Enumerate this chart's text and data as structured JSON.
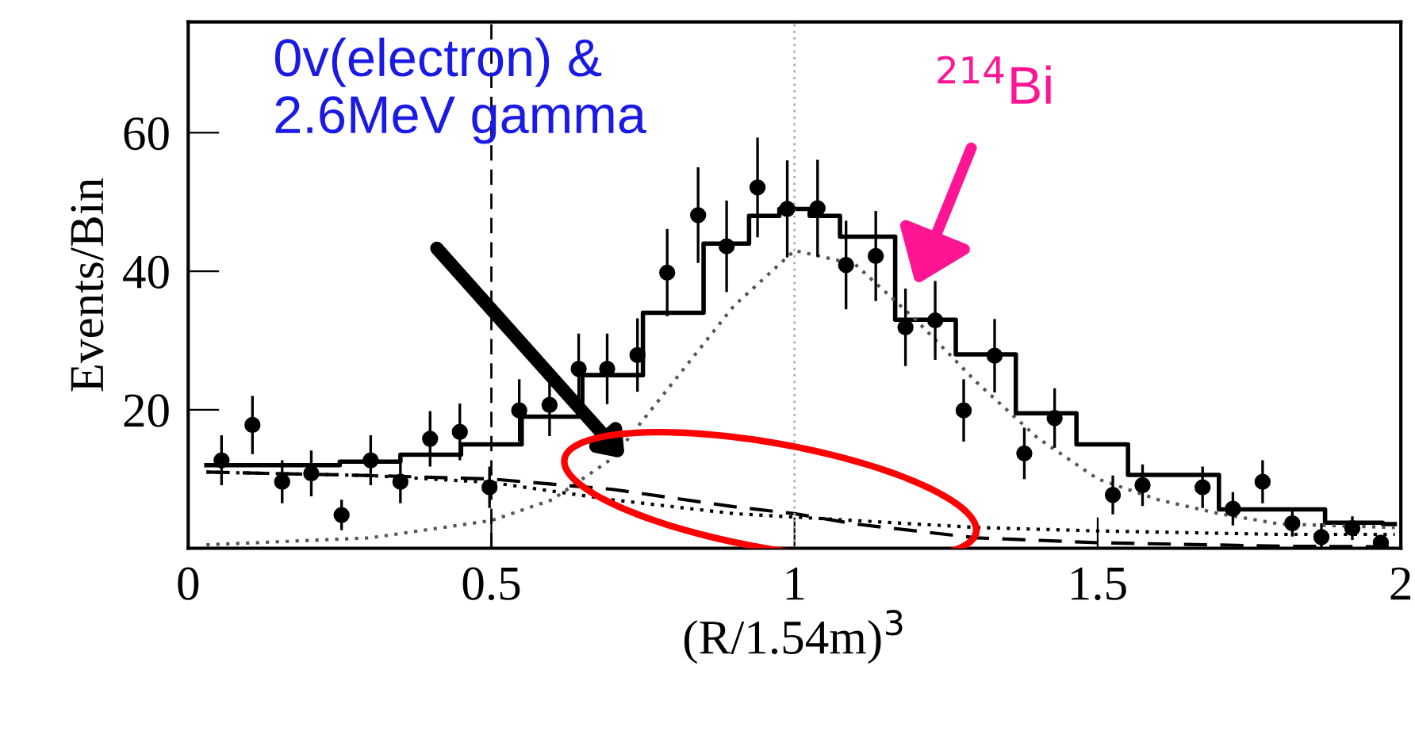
{
  "chart_data": {
    "type": "scatter",
    "xlabel": "(R/1.54m)$^{3}$",
    "ylabel": "Events/Bin",
    "xlim": [
      0,
      2
    ],
    "ylim": [
      0,
      76
    ],
    "xticks": [
      0,
      0.5,
      1,
      1.5,
      2
    ],
    "yticks": [
      20,
      40,
      60
    ],
    "grid": false,
    "legend": false,
    "series": [
      {
        "color": "#000000",
        "marker": "circle",
        "x": [
          0.055,
          0.106,
          0.155,
          0.203,
          0.253,
          0.301,
          0.35,
          0.399,
          0.448,
          0.497,
          0.546,
          0.596,
          0.644,
          0.691,
          0.741,
          0.79,
          0.841,
          0.888,
          0.939,
          0.988,
          1.038,
          1.085,
          1.134,
          1.183,
          1.232,
          1.279,
          1.33,
          1.379,
          1.429,
          1.525,
          1.574,
          1.673,
          1.723,
          1.772,
          1.821,
          1.869,
          1.92,
          1.967
        ],
        "values": [
          12.7,
          17.8,
          9.6,
          10.8,
          4.8,
          12.7,
          9.6,
          15.8,
          16.8,
          8.8,
          19.9,
          20.7,
          25.9,
          25.9,
          27.9,
          39.8,
          48.1,
          43.6,
          52.1,
          49,
          49.1,
          40.9,
          42.2,
          31.9,
          32.9,
          19.9,
          27.8,
          13.7,
          18.8,
          7.7,
          9.1,
          8.8,
          5.7,
          9.6,
          3.6,
          1.6,
          2.9,
          0.8
        ],
        "errors": [
          3.6,
          4.2,
          3.1,
          3.3,
          2.2,
          3.6,
          3.1,
          4,
          4.1,
          3,
          4.5,
          4.5,
          5.1,
          5.1,
          5.3,
          6.3,
          6.9,
          6.6,
          7.2,
          7,
          7,
          6.4,
          6.5,
          5.6,
          5.7,
          4.5,
          5.3,
          3.7,
          4.3,
          2.8,
          3,
          3,
          2.4,
          3.1,
          1.9,
          2,
          1.7,
          0.9
        ]
      },
      {
        "type": "step",
        "color": "#000000",
        "line_style": "solid",
        "x": [
          0.03,
          0.2,
          0.3,
          0.4,
          0.5,
          0.6,
          0.7,
          0.8,
          0.9,
          0.95,
          1.0,
          1.05,
          1.1,
          1.232,
          1.3,
          1.43,
          1.5,
          1.6,
          1.8,
          1.95,
          1.99
        ],
        "values": [
          12,
          12,
          12.5,
          13.5,
          15,
          19,
          25,
          34,
          44,
          48,
          49,
          48,
          45,
          33,
          28,
          19.5,
          15,
          10.6,
          5.6,
          3.7,
          3.5
        ]
      },
      {
        "type": "line",
        "color": "#555555",
        "line_style": "dotted",
        "x": [
          0.03,
          0.3,
          0.5,
          0.6,
          0.7,
          0.8,
          0.9,
          1.0,
          1.1,
          1.2,
          1.3,
          1.4,
          1.5,
          1.6,
          1.7,
          1.8,
          1.99
        ],
        "values": [
          0.5,
          1.5,
          4,
          7,
          13,
          24,
          35,
          43,
          41,
          33,
          24,
          16,
          10,
          7,
          5,
          3.5,
          3
        ]
      },
      {
        "type": "line",
        "color": "#000000",
        "line_style": "dashed",
        "x": [
          0.03,
          0.3,
          0.5,
          0.7,
          0.9,
          1.0,
          1.1,
          1.2,
          1.3,
          1.5,
          1.8,
          1.99
        ],
        "values": [
          11,
          10.5,
          10,
          8.5,
          6,
          5,
          3.5,
          2.5,
          1.5,
          0.8,
          0.3,
          0.2
        ]
      },
      {
        "type": "line",
        "color": "#000000",
        "line_style": "dotted",
        "x": [
          0.03,
          0.3,
          0.5,
          0.7,
          0.9,
          1.1,
          1.3,
          1.5,
          1.8,
          1.99
        ],
        "values": [
          11,
          10.5,
          9.5,
          7,
          5,
          4,
          3,
          2.5,
          2,
          2
        ]
      }
    ],
    "ref_lines": [
      {
        "axis": "x",
        "value": 0.5,
        "color": "#000000",
        "line_style": "dashed"
      },
      {
        "axis": "x",
        "value": 1,
        "color": "#aaaaaa",
        "line_style": "dotted"
      }
    ],
    "annotations": [
      "0v(electron) &\n2.6MeV gamma",
      "$^{214}$Bi"
    ]
  }
}
